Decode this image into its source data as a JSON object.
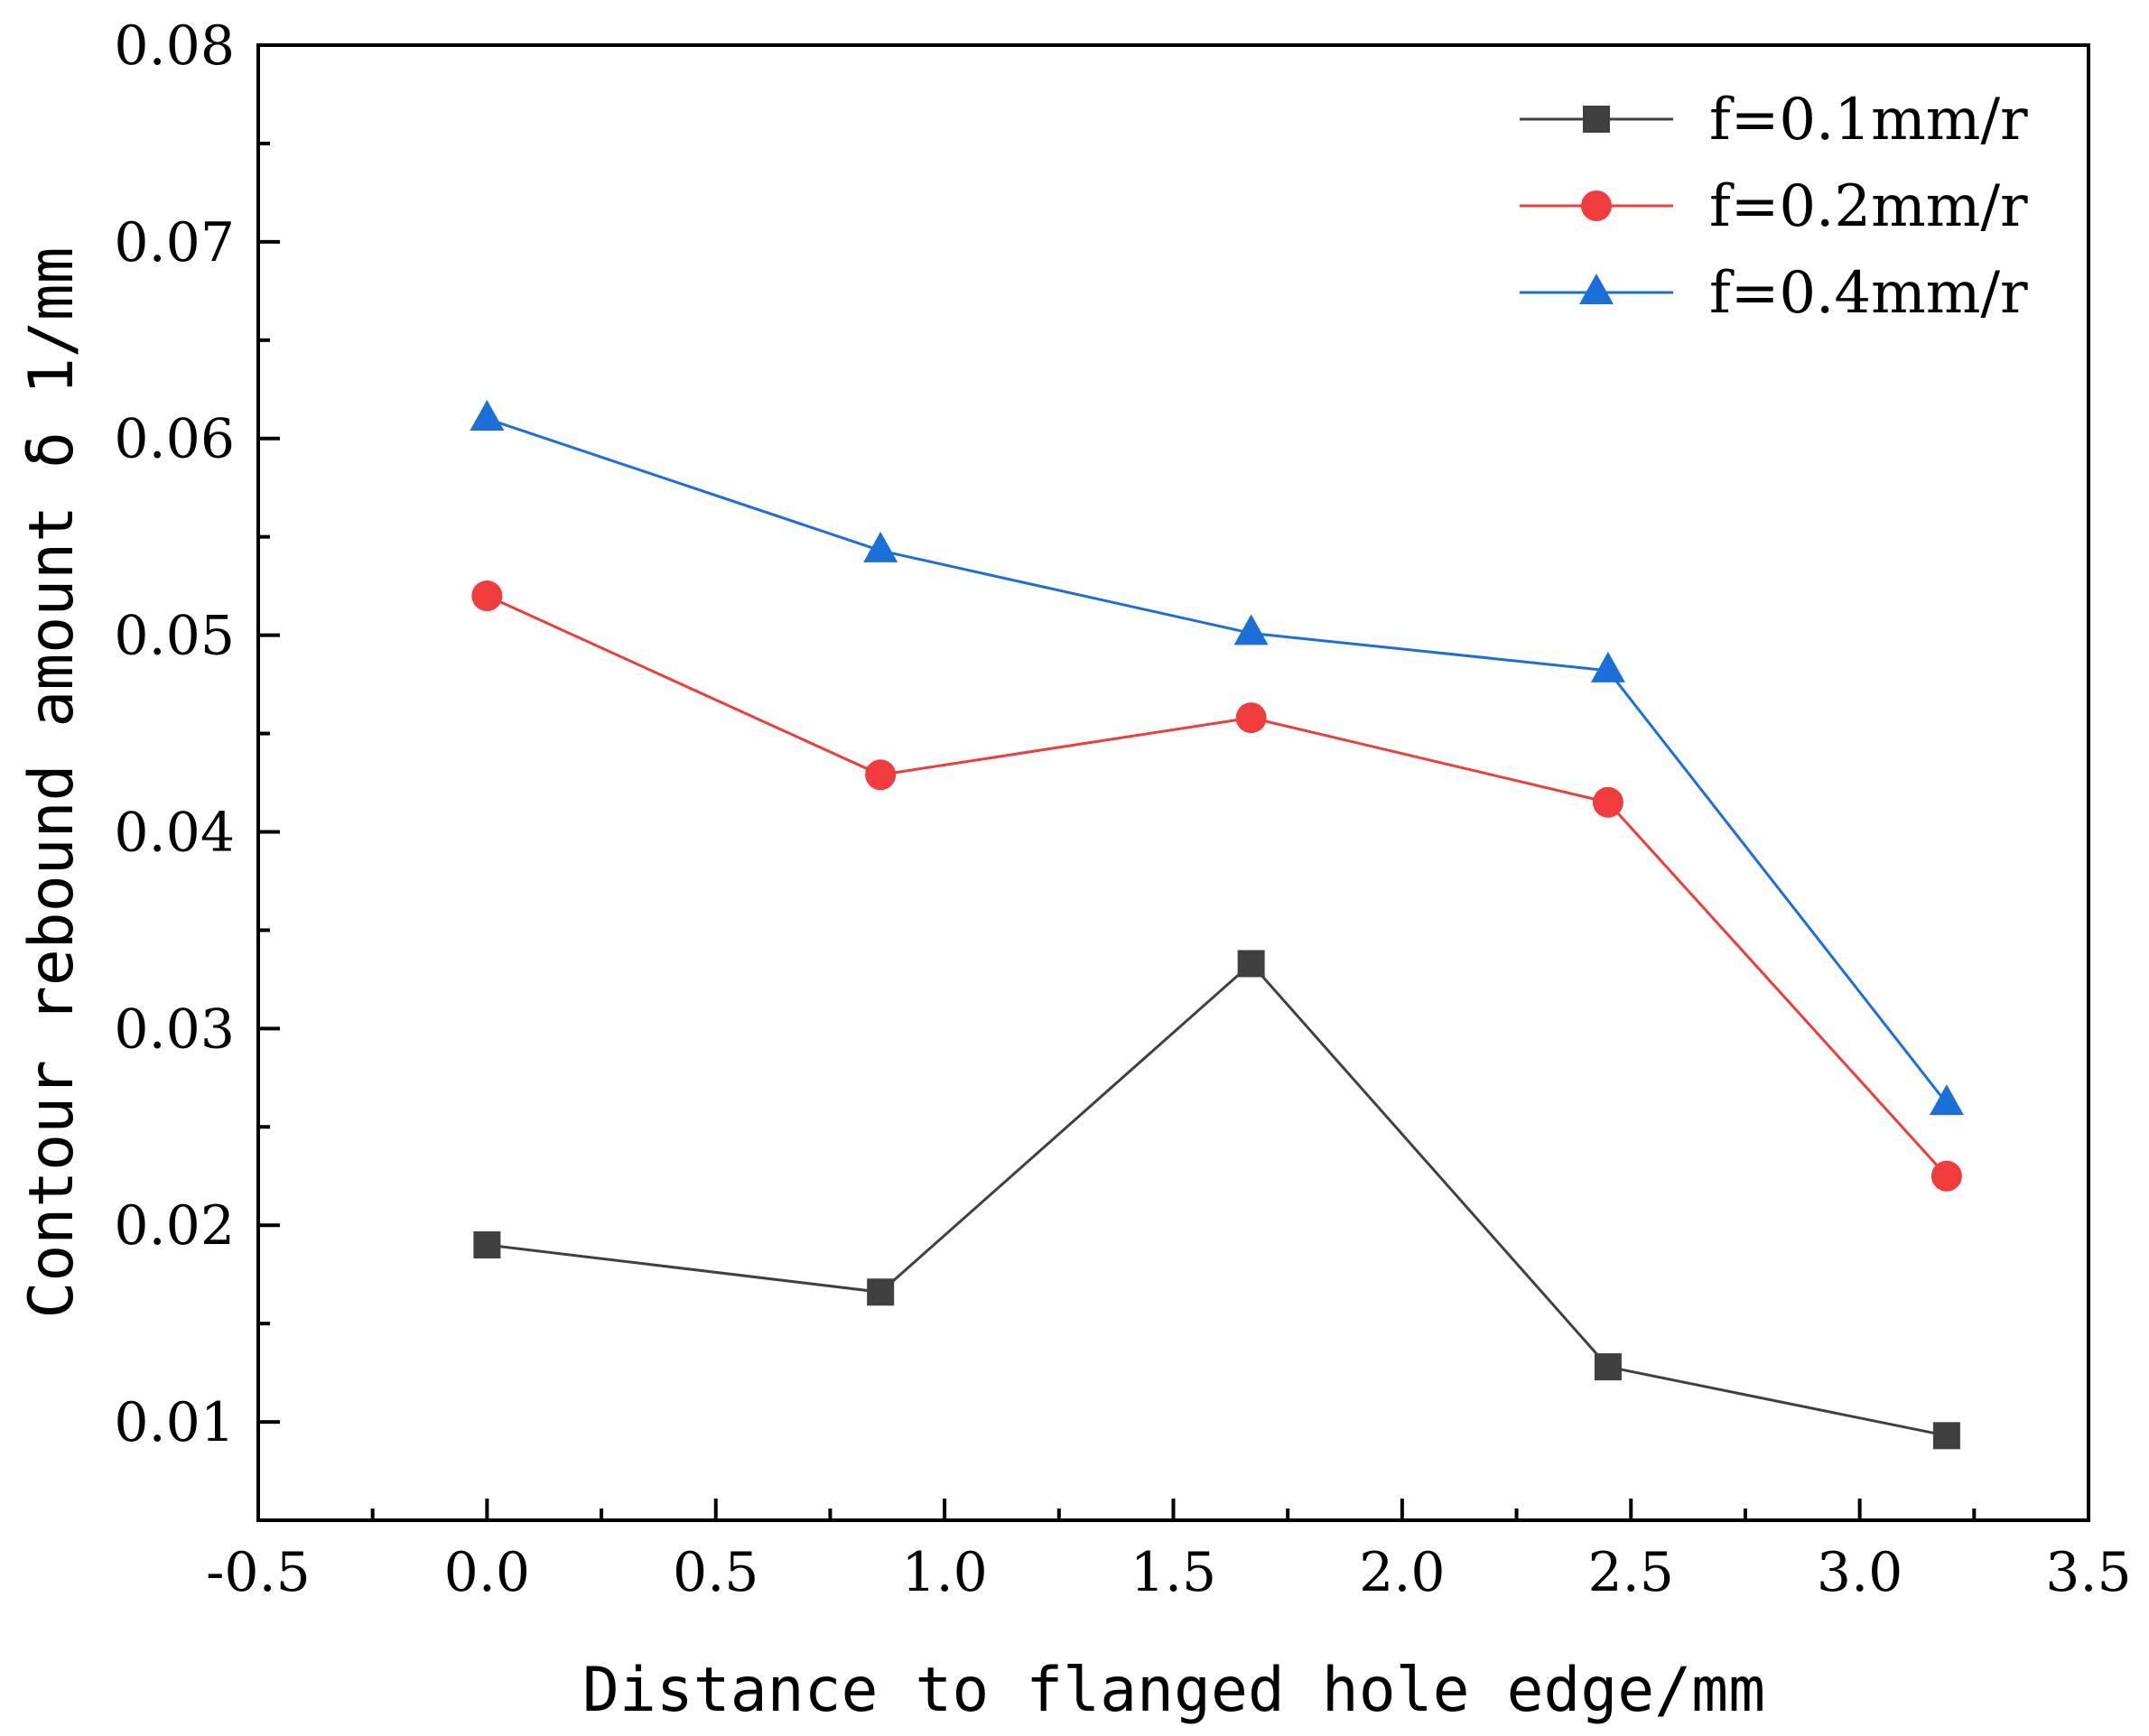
{
  "chart_data": {
    "type": "line",
    "title": "",
    "xlabel": "Distance to flanged hole edge/mm",
    "ylabel": "Contour rebound amount δ 1/mm",
    "xlim": [
      -0.5,
      3.5
    ],
    "ylim": [
      0.005,
      0.08
    ],
    "xticks": [
      -0.5,
      0.0,
      0.5,
      1.0,
      1.5,
      2.0,
      2.5,
      3.0,
      3.5
    ],
    "xtick_labels": [
      "-0.5",
      "0.0",
      "0.5",
      "1.0",
      "1.5",
      "2.0",
      "2.5",
      "3.0",
      "3.5"
    ],
    "yticks": [
      0.01,
      0.02,
      0.03,
      0.04,
      0.05,
      0.06,
      0.07,
      0.08
    ],
    "ytick_labels": [
      "0.01",
      "0.02",
      "0.03",
      "0.04",
      "0.05",
      "0.06",
      "0.07",
      "0.08"
    ],
    "grid": false,
    "legend_position": "top-right",
    "x": [
      0.0,
      0.86,
      1.67,
      2.45,
      3.19
    ],
    "series": [
      {
        "name": "f=0.1mm/r",
        "color": "#404040",
        "marker": "square",
        "values": [
          0.019,
          0.0166,
          0.0333,
          0.0128,
          0.0093
        ]
      },
      {
        "name": "f=0.2mm/r",
        "color": "#f03c3c",
        "marker": "circle",
        "values": [
          0.052,
          0.0429,
          0.0458,
          0.0415,
          0.0225
        ]
      },
      {
        "name": "f=0.4mm/r",
        "color": "#1a6fd8",
        "marker": "triangle",
        "values": [
          0.061,
          0.0543,
          0.0501,
          0.0482,
          0.0262
        ]
      }
    ]
  }
}
